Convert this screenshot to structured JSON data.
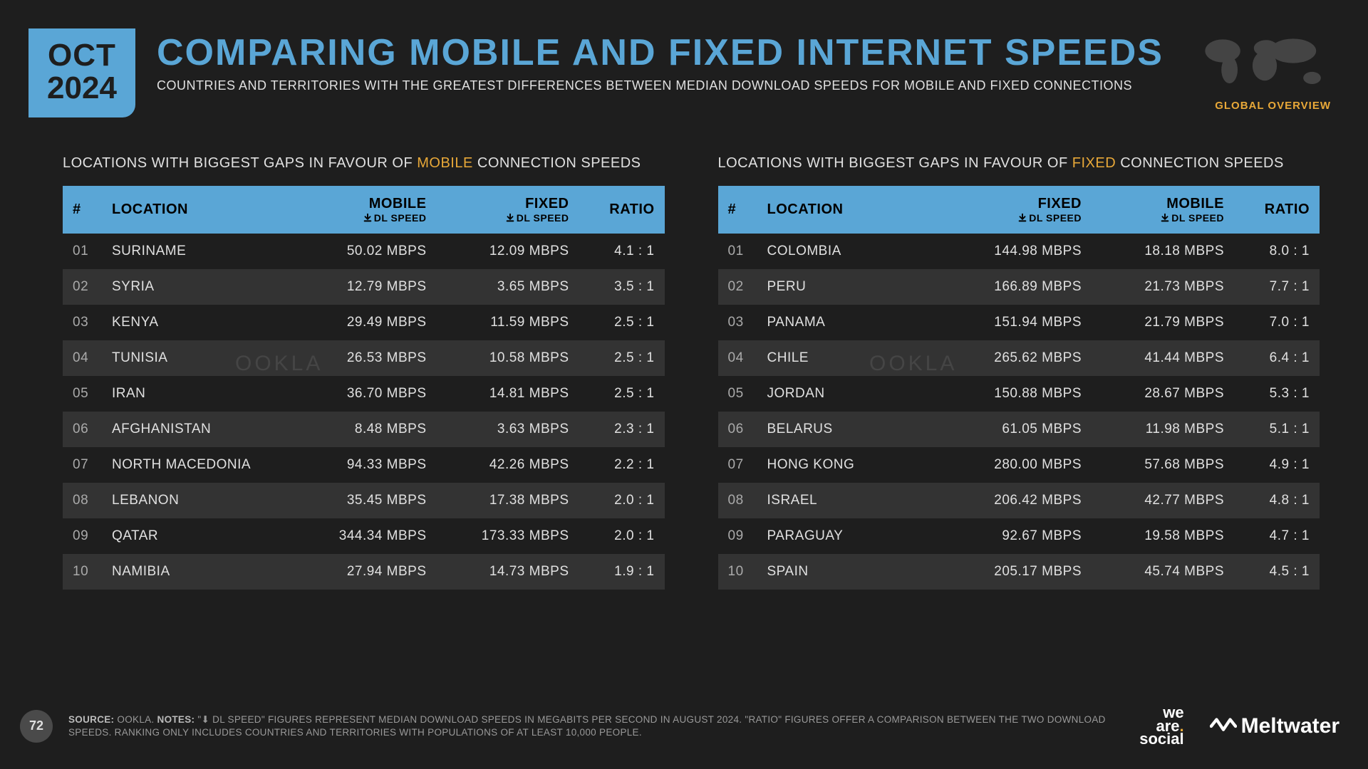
{
  "date": {
    "month": "OCT",
    "year": "2024"
  },
  "header": {
    "title": "COMPARING MOBILE AND FIXED INTERNET SPEEDS",
    "subtitle": "COUNTRIES AND TERRITORIES WITH THE GREATEST DIFFERENCES BETWEEN MEDIAN DOWNLOAD SPEEDS FOR MOBILE AND FIXED CONNECTIONS"
  },
  "global_overview": "GLOBAL OVERVIEW",
  "left_table": {
    "title_prefix": "LOCATIONS WITH BIGGEST GAPS IN FAVOUR OF ",
    "title_highlight": "MOBILE",
    "title_suffix": " CONNECTION SPEEDS",
    "columns": {
      "num": "#",
      "location": "LOCATION",
      "col1": "MOBILE",
      "col1_sub": "DL SPEED",
      "col2": "FIXED",
      "col2_sub": "DL SPEED",
      "ratio": "RATIO"
    },
    "rows": [
      {
        "n": "01",
        "loc": "SURINAME",
        "a": "50.02 MBPS",
        "b": "12.09 MBPS",
        "r": "4.1 : 1"
      },
      {
        "n": "02",
        "loc": "SYRIA",
        "a": "12.79 MBPS",
        "b": "3.65 MBPS",
        "r": "3.5 : 1"
      },
      {
        "n": "03",
        "loc": "KENYA",
        "a": "29.49 MBPS",
        "b": "11.59 MBPS",
        "r": "2.5 : 1"
      },
      {
        "n": "04",
        "loc": "TUNISIA",
        "a": "26.53 MBPS",
        "b": "10.58 MBPS",
        "r": "2.5 : 1"
      },
      {
        "n": "05",
        "loc": "IRAN",
        "a": "36.70 MBPS",
        "b": "14.81 MBPS",
        "r": "2.5 : 1"
      },
      {
        "n": "06",
        "loc": "AFGHANISTAN",
        "a": "8.48 MBPS",
        "b": "3.63 MBPS",
        "r": "2.3 : 1"
      },
      {
        "n": "07",
        "loc": "NORTH MACEDONIA",
        "a": "94.33 MBPS",
        "b": "42.26 MBPS",
        "r": "2.2 : 1"
      },
      {
        "n": "08",
        "loc": "LEBANON",
        "a": "35.45 MBPS",
        "b": "17.38 MBPS",
        "r": "2.0 : 1"
      },
      {
        "n": "09",
        "loc": "QATAR",
        "a": "344.34 MBPS",
        "b": "173.33 MBPS",
        "r": "2.0 : 1"
      },
      {
        "n": "10",
        "loc": "NAMIBIA",
        "a": "27.94 MBPS",
        "b": "14.73 MBPS",
        "r": "1.9 : 1"
      }
    ]
  },
  "right_table": {
    "title_prefix": "LOCATIONS WITH BIGGEST GAPS IN FAVOUR OF ",
    "title_highlight": "FIXED",
    "title_suffix": " CONNECTION SPEEDS",
    "columns": {
      "num": "#",
      "location": "LOCATION",
      "col1": "FIXED",
      "col1_sub": "DL SPEED",
      "col2": "MOBILE",
      "col2_sub": "DL SPEED",
      "ratio": "RATIO"
    },
    "rows": [
      {
        "n": "01",
        "loc": "COLOMBIA",
        "a": "144.98 MBPS",
        "b": "18.18 MBPS",
        "r": "8.0 : 1"
      },
      {
        "n": "02",
        "loc": "PERU",
        "a": "166.89 MBPS",
        "b": "21.73 MBPS",
        "r": "7.7 : 1"
      },
      {
        "n": "03",
        "loc": "PANAMA",
        "a": "151.94 MBPS",
        "b": "21.79 MBPS",
        "r": "7.0 : 1"
      },
      {
        "n": "04",
        "loc": "CHILE",
        "a": "265.62 MBPS",
        "b": "41.44 MBPS",
        "r": "6.4 : 1"
      },
      {
        "n": "05",
        "loc": "JORDAN",
        "a": "150.88 MBPS",
        "b": "28.67 MBPS",
        "r": "5.3 : 1"
      },
      {
        "n": "06",
        "loc": "BELARUS",
        "a": "61.05 MBPS",
        "b": "11.98 MBPS",
        "r": "5.1 : 1"
      },
      {
        "n": "07",
        "loc": "HONG KONG",
        "a": "280.00 MBPS",
        "b": "57.68 MBPS",
        "r": "4.9 : 1"
      },
      {
        "n": "08",
        "loc": "ISRAEL",
        "a": "206.42 MBPS",
        "b": "42.77 MBPS",
        "r": "4.8 : 1"
      },
      {
        "n": "09",
        "loc": "PARAGUAY",
        "a": "92.67 MBPS",
        "b": "19.58 MBPS",
        "r": "4.7 : 1"
      },
      {
        "n": "10",
        "loc": "SPAIN",
        "a": "205.17 MBPS",
        "b": "45.74 MBPS",
        "r": "4.5 : 1"
      }
    ]
  },
  "watermark": "OOKLA",
  "footer": {
    "page": "72",
    "source_label": "SOURCE:",
    "source_text": " OOKLA.  ",
    "notes_label": "NOTES:",
    "notes_text": " \"⬇ DL SPEED\" FIGURES REPRESENT MEDIAN DOWNLOAD SPEEDS IN MEGABITS PER SECOND IN AUGUST 2024. \"RATIO\" FIGURES OFFER A COMPARISON BETWEEN THE TWO DOWNLOAD SPEEDS. RANKING ONLY INCLUDES COUNTRIES AND TERRITORIES WITH POPULATIONS OF AT LEAST 10,000 PEOPLE."
  },
  "logos": {
    "was1": "we",
    "was2": "are",
    "was3": "social",
    "meltwater": "Meltwater"
  },
  "colors": {
    "bg": "#1e1e1e",
    "accent": "#5aa6d6",
    "highlight": "#e8a838",
    "row_alt": "#333333"
  }
}
